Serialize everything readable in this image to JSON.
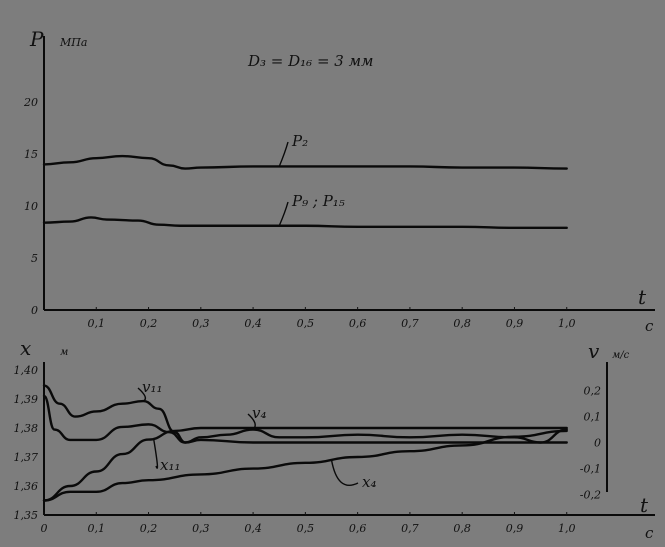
{
  "chart_data": [
    {
      "type": "line",
      "title": "D₃ = D₁₆ = 3 мм",
      "ylabel": "P",
      "yunit": "МПа",
      "xlabel": "t",
      "xunit": "с",
      "xlim": [
        0,
        1.1
      ],
      "ylim": [
        0,
        25
      ],
      "xticks": [
        "0,1",
        "0,2",
        "0,3",
        "0,4",
        "0,5",
        "0,6",
        "0,7",
        "0,8",
        "0,9",
        "1,0"
      ],
      "yticks": [
        "0",
        "5",
        "10",
        "15",
        "20"
      ],
      "grid": false,
      "series": [
        {
          "name": "P₂",
          "x": [
            0,
            0.05,
            0.1,
            0.15,
            0.2,
            0.24,
            0.27,
            0.3,
            0.4,
            0.5,
            0.6,
            0.7,
            0.8,
            0.9,
            1.0
          ],
          "y": [
            14.0,
            14.2,
            14.6,
            14.8,
            14.6,
            13.9,
            13.6,
            13.7,
            13.8,
            13.8,
            13.8,
            13.8,
            13.7,
            13.7,
            13.6
          ]
        },
        {
          "name": "P₉ ; P₁₅",
          "x": [
            0,
            0.05,
            0.09,
            0.12,
            0.18,
            0.22,
            0.26,
            0.3,
            0.4,
            0.5,
            0.6,
            0.7,
            0.8,
            0.9,
            1.0
          ],
          "y": [
            8.4,
            8.5,
            8.9,
            8.7,
            8.6,
            8.2,
            8.1,
            8.1,
            8.1,
            8.1,
            8.0,
            8.0,
            8.0,
            7.9,
            7.9
          ]
        }
      ]
    },
    {
      "type": "line",
      "xlabel": "t",
      "xunit": "с",
      "ylabel": "x",
      "yunit": "м",
      "y2label": "v",
      "y2unit": "м/с",
      "xlim": [
        0,
        1.1
      ],
      "ylim": [
        1.35,
        1.4
      ],
      "y2lim": [
        -0.28,
        0.28
      ],
      "xticks": [
        "0",
        "0,1",
        "0,2",
        "0,3",
        "0,4",
        "0,5",
        "0,6",
        "0,7",
        "0,8",
        "0,9",
        "1,0"
      ],
      "yticks": [
        "1,35",
        "1,36",
        "1,37",
        "1,38",
        "1,39",
        "1,40"
      ],
      "y2ticks": [
        "0,2",
        "0,1",
        "0",
        "-0,1",
        "-0,2"
      ],
      "grid": false,
      "series": [
        {
          "name": "v₁₁",
          "axis": "right",
          "x": [
            0,
            0.03,
            0.06,
            0.1,
            0.15,
            0.19,
            0.22,
            0.25,
            0.27,
            0.3,
            0.4,
            0.5,
            0.6,
            0.7,
            0.8,
            0.9,
            1.0
          ],
          "y": [
            0.22,
            0.15,
            0.1,
            0.12,
            0.15,
            0.16,
            0.13,
            0.04,
            0.0,
            0.01,
            0.0,
            0.0,
            0.0,
            0.0,
            0.0,
            0.0,
            0.0
          ]
        },
        {
          "name": "v₄",
          "axis": "right",
          "x": [
            0,
            0.02,
            0.05,
            0.1,
            0.15,
            0.2,
            0.24,
            0.27,
            0.3,
            0.35,
            0.4,
            0.45,
            0.5,
            0.6,
            0.7,
            0.8,
            0.9,
            0.95,
            1.0
          ],
          "y": [
            0.18,
            0.05,
            0.01,
            0.01,
            0.06,
            0.07,
            0.04,
            0.0,
            0.02,
            0.03,
            0.05,
            0.02,
            0.02,
            0.03,
            0.02,
            0.03,
            0.02,
            0.0,
            0.05
          ]
        },
        {
          "name": "x₁₁",
          "axis": "left",
          "x": [
            0,
            0.05,
            0.1,
            0.15,
            0.2,
            0.25,
            0.3,
            0.4,
            0.5,
            0.6,
            0.7,
            0.8,
            0.9,
            1.0
          ],
          "y": [
            1.355,
            1.36,
            1.365,
            1.371,
            1.376,
            1.379,
            1.38,
            1.38,
            1.38,
            1.38,
            1.38,
            1.38,
            1.38,
            1.38
          ]
        },
        {
          "name": "x₄",
          "axis": "left",
          "x": [
            0,
            0.05,
            0.1,
            0.15,
            0.2,
            0.3,
            0.4,
            0.5,
            0.6,
            0.7,
            0.8,
            0.9,
            1.0
          ],
          "y": [
            1.355,
            1.358,
            1.358,
            1.361,
            1.362,
            1.364,
            1.366,
            1.368,
            1.37,
            1.372,
            1.374,
            1.377,
            1.379
          ]
        }
      ]
    }
  ]
}
